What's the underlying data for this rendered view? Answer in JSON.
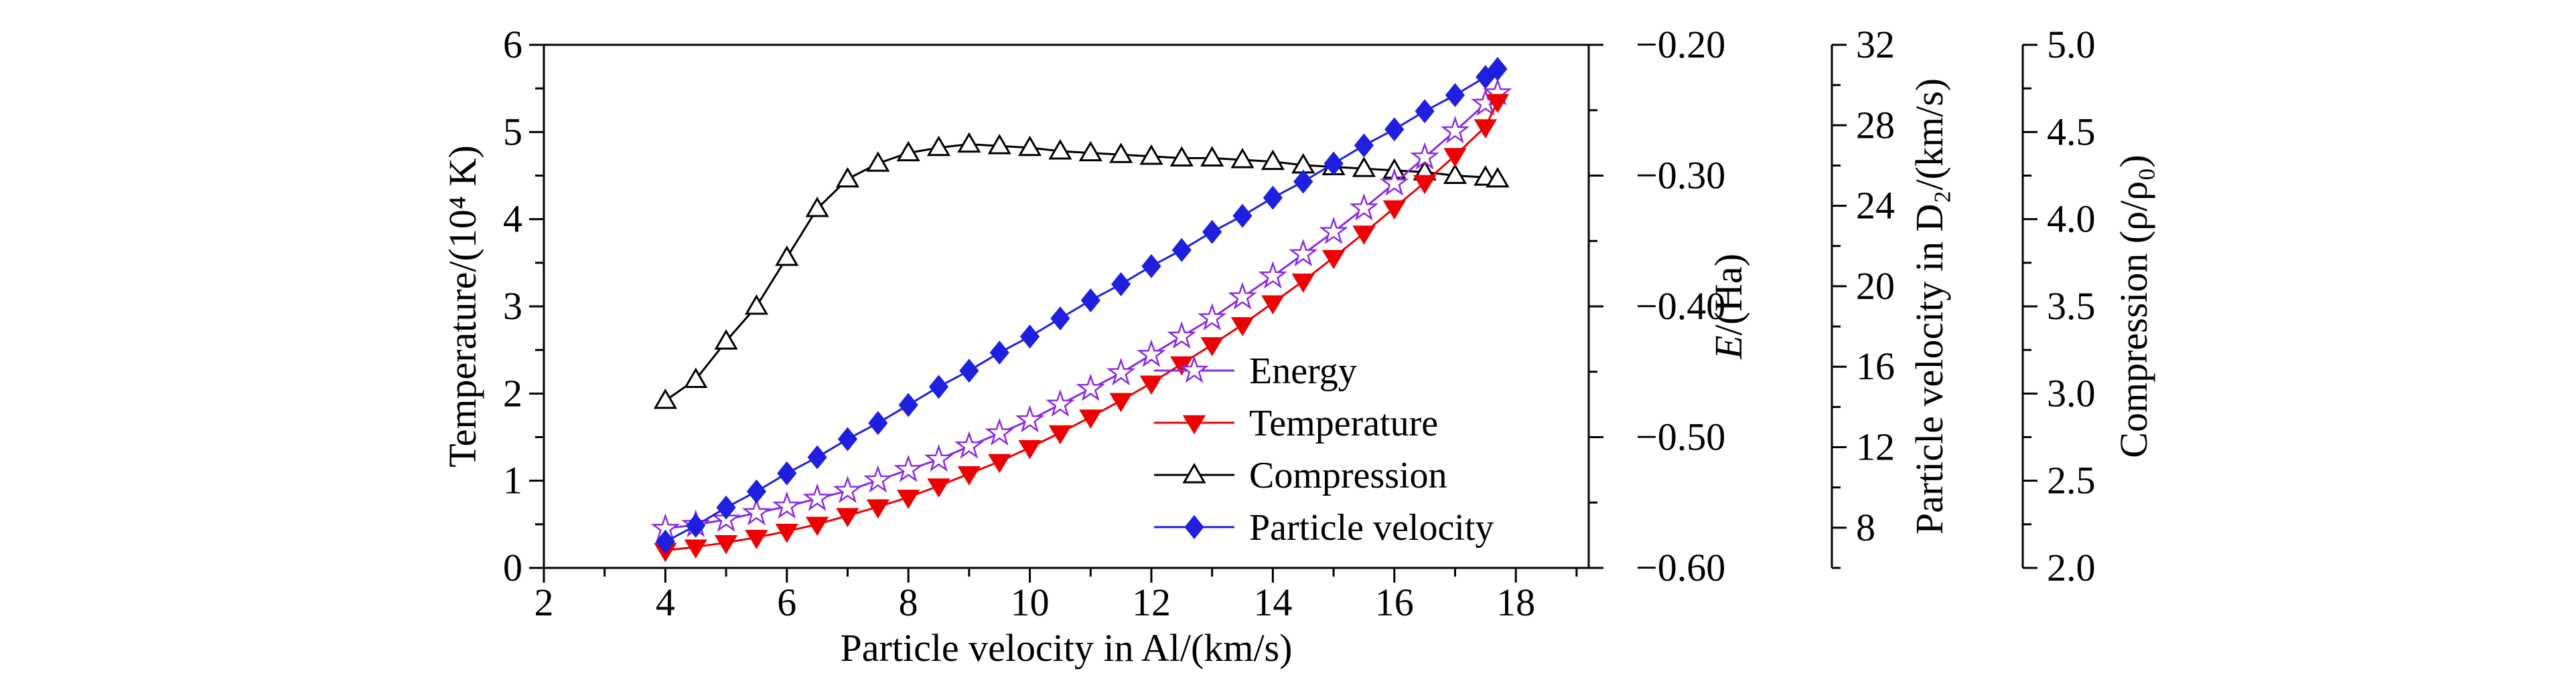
{
  "chart_data": {
    "type": "line",
    "x": {
      "label": "Particle velocity in Al/(km/s)",
      "min": 2,
      "max": 19.2,
      "major_ticks": [
        2,
        4,
        6,
        8,
        10,
        12,
        14,
        16,
        18
      ],
      "tick_labels": [
        "2",
        "4",
        "6",
        "8",
        "10",
        "12",
        "14",
        "16",
        "18"
      ],
      "minor_step": 1
    },
    "axes": {
      "temperature": {
        "label": "Temperature/(10⁴ K)",
        "side": "left",
        "min": 0,
        "max": 6,
        "major_ticks": [
          0,
          1,
          2,
          3,
          4,
          5,
          6
        ],
        "tick_labels": [
          "0",
          "1",
          "2",
          "3",
          "4",
          "5",
          "6"
        ],
        "minor_step": 0.5
      },
      "energy": {
        "label": "E/(Ha)",
        "italic_first": true,
        "side": "right-frame",
        "min": -0.6,
        "max": -0.2,
        "major_ticks": [
          -0.6,
          -0.5,
          -0.4,
          -0.3,
          -0.2
        ],
        "tick_labels": [
          "−0.60",
          "−0.50",
          "−0.40",
          "−0.30",
          "−0.20"
        ],
        "minor_step": 0.05
      },
      "d2_velocity": {
        "label": "Particle velocity in D₂/(km/s)",
        "side": "floating-right-1",
        "min": 6,
        "max": 32,
        "major_ticks": [
          8,
          12,
          16,
          20,
          24,
          28,
          32
        ],
        "tick_labels": [
          "8",
          "12",
          "16",
          "20",
          "24",
          "28",
          "32"
        ],
        "minor_step": 2
      },
      "compression": {
        "label": "Compression (ρ/ρ₀)",
        "side": "floating-right-2",
        "min": 2.0,
        "max": 5.0,
        "major_ticks": [
          2.0,
          2.5,
          3.0,
          3.5,
          4.0,
          4.5,
          5.0
        ],
        "tick_labels": [
          "2.0",
          "2.5",
          "3.0",
          "3.5",
          "4.0",
          "4.5",
          "5.0"
        ],
        "minor_step": 0.25
      }
    },
    "x_values": [
      4,
      4.5,
      5,
      5.5,
      6,
      6.5,
      7,
      7.5,
      8,
      8.5,
      9,
      9.5,
      10,
      10.5,
      11,
      11.5,
      12,
      12.5,
      13,
      13.5,
      14,
      14.5,
      15,
      15.5,
      16,
      16.5,
      17,
      17.5,
      17.7
    ],
    "series": [
      {
        "name": "Compression",
        "axis": "compression",
        "color": "#000000",
        "marker": "triangle-up-open",
        "values": [
          2.96,
          3.08,
          3.3,
          3.5,
          3.78,
          4.06,
          4.23,
          4.32,
          4.38,
          4.41,
          4.43,
          4.42,
          4.41,
          4.39,
          4.38,
          4.37,
          4.36,
          4.35,
          4.35,
          4.34,
          4.33,
          4.31,
          4.3,
          4.29,
          4.28,
          4.27,
          4.25,
          4.24,
          4.23
        ]
      },
      {
        "name": "Energy",
        "axis": "energy",
        "color": "#8a2be2",
        "marker": "star-open",
        "values": [
          -0.57,
          -0.567,
          -0.563,
          -0.558,
          -0.553,
          -0.547,
          -0.541,
          -0.533,
          -0.525,
          -0.517,
          -0.507,
          -0.497,
          -0.487,
          -0.475,
          -0.463,
          -0.451,
          -0.437,
          -0.423,
          -0.409,
          -0.393,
          -0.377,
          -0.36,
          -0.343,
          -0.325,
          -0.306,
          -0.286,
          -0.266,
          -0.245,
          -0.237
        ]
      },
      {
        "name": "Temperature",
        "axis": "temperature",
        "color": "#ee0000",
        "marker": "triangle-down-filled",
        "values": [
          0.2,
          0.24,
          0.29,
          0.35,
          0.42,
          0.5,
          0.6,
          0.7,
          0.81,
          0.94,
          1.08,
          1.22,
          1.38,
          1.55,
          1.73,
          1.92,
          2.12,
          2.34,
          2.56,
          2.79,
          3.04,
          3.29,
          3.56,
          3.84,
          4.13,
          4.42,
          4.73,
          5.06,
          5.35
        ]
      },
      {
        "name": "Particle velocity",
        "axis": "d2_velocity",
        "color": "#1f1fe0",
        "marker": "diamond-filled",
        "values": [
          7.3,
          8.1,
          9.0,
          9.8,
          10.7,
          11.5,
          12.4,
          13.2,
          14.1,
          15.0,
          15.8,
          16.7,
          17.5,
          18.4,
          19.3,
          20.1,
          21.0,
          21.8,
          22.7,
          23.5,
          24.4,
          25.2,
          26.1,
          27.0,
          27.8,
          28.7,
          29.5,
          30.4,
          30.8
        ]
      }
    ],
    "legend": {
      "position": "inside-right",
      "entries": [
        "Energy",
        "Temperature",
        "Compression",
        "Particle velocity"
      ]
    }
  }
}
